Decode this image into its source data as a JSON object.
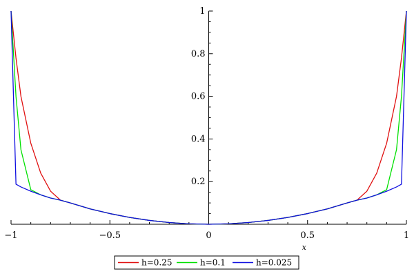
{
  "chart_data": {
    "type": "line",
    "title": "",
    "xlabel": "x",
    "ylabel": "",
    "xlim": [
      -1,
      1
    ],
    "ylim": [
      0,
      1
    ],
    "grid": false,
    "legend_position": "bottom-center",
    "x_ticks": [
      {
        "value": -1,
        "label": "−1"
      },
      {
        "value": -0.5,
        "label": "−0.5"
      },
      {
        "value": 0,
        "label": "0"
      },
      {
        "value": 0.5,
        "label": "0.5"
      },
      {
        "value": 1,
        "label": "1"
      }
    ],
    "y_ticks": [
      {
        "value": 0.2,
        "label": "0.2"
      },
      {
        "value": 0.4,
        "label": "0.4"
      },
      {
        "value": 0.6,
        "label": "0.6"
      },
      {
        "value": 0.8,
        "label": "0.8"
      },
      {
        "value": 1,
        "label": "1"
      }
    ],
    "x": [
      -1,
      -0.975,
      -0.95,
      -0.9,
      -0.85,
      -0.8,
      -0.75,
      -0.7,
      -0.6,
      -0.5,
      -0.4,
      -0.3,
      -0.2,
      -0.1,
      0,
      0.1,
      0.2,
      0.3,
      0.4,
      0.5,
      0.6,
      0.7,
      0.75,
      0.8,
      0.85,
      0.9,
      0.95,
      0.975,
      1
    ],
    "series": [
      {
        "name": "h=0.25",
        "color": "#e01010",
        "values": [
          1.0,
          0.78,
          0.6,
          0.38,
          0.24,
          0.155,
          0.113,
          0.1,
          0.072,
          0.05,
          0.032,
          0.018,
          0.008,
          0.002,
          0.0,
          0.002,
          0.008,
          0.018,
          0.032,
          0.05,
          0.072,
          0.1,
          0.113,
          0.155,
          0.24,
          0.38,
          0.6,
          0.78,
          1.0
        ]
      },
      {
        "name": "h=0.1",
        "color": "#00e000",
        "values": [
          1.0,
          0.6,
          0.35,
          0.162,
          0.138,
          0.123,
          0.113,
          0.1,
          0.072,
          0.05,
          0.032,
          0.018,
          0.008,
          0.002,
          0.0,
          0.002,
          0.008,
          0.018,
          0.032,
          0.05,
          0.072,
          0.1,
          0.113,
          0.123,
          0.138,
          0.162,
          0.35,
          0.6,
          1.0
        ]
      },
      {
        "name": "h=0.025",
        "color": "#1010e0",
        "values": [
          1.0,
          0.188,
          0.175,
          0.155,
          0.138,
          0.123,
          0.113,
          0.1,
          0.072,
          0.05,
          0.032,
          0.018,
          0.008,
          0.002,
          0.0,
          0.002,
          0.008,
          0.018,
          0.032,
          0.05,
          0.072,
          0.1,
          0.113,
          0.123,
          0.138,
          0.155,
          0.175,
          0.188,
          1.0
        ]
      }
    ]
  }
}
